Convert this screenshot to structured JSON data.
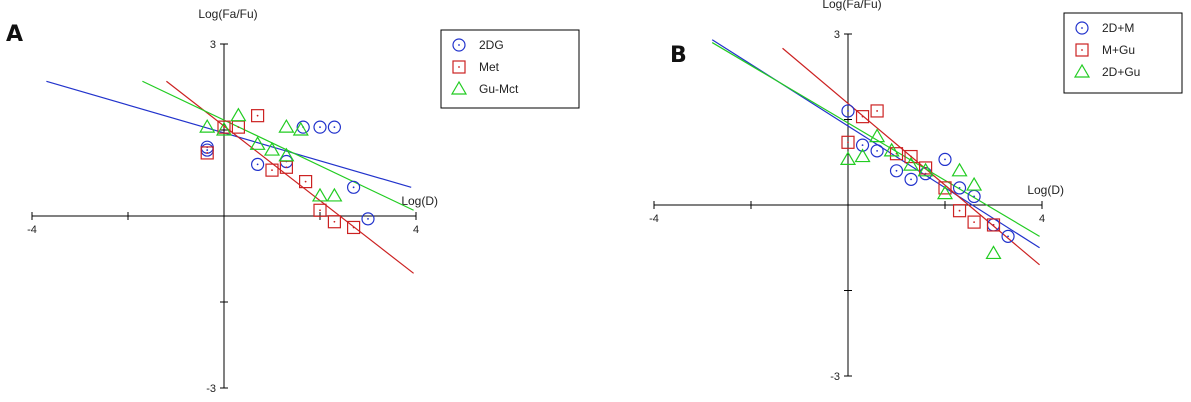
{
  "chart_data": [
    {
      "panel": "A",
      "type": "scatter",
      "xlabel": "Log(D)",
      "ylabel": "Log(Fa/Fu)",
      "xlim": [
        -4,
        4
      ],
      "ylim": [
        -3,
        3
      ],
      "x_ticks": [
        -4,
        -2,
        0,
        2,
        4
      ],
      "y_ticks": [
        -3,
        -1.5,
        0,
        1.5,
        3
      ],
      "x_tick_labels": [
        {
          "value": -4,
          "label": "-4"
        },
        {
          "value": 4,
          "label": "4"
        }
      ],
      "y_tick_labels": [
        {
          "value": 3,
          "label": "3"
        },
        {
          "value": -3,
          "label": "-3"
        }
      ],
      "legend_position": "top-right",
      "series": [
        {
          "name": "2DG",
          "color": "#2233cc",
          "marker": "circle",
          "points": [
            [
              -0.35,
              1.2
            ],
            [
              -0.35,
              1.15
            ],
            [
              0.7,
              0.9
            ],
            [
              1.3,
              0.95
            ],
            [
              1.65,
              1.55
            ],
            [
              2.0,
              1.55
            ],
            [
              2.3,
              1.55
            ],
            [
              2.7,
              0.5
            ],
            [
              3.0,
              -0.05
            ]
          ],
          "fit": {
            "x": [
              -3.7,
              3.9
            ],
            "y": [
              2.35,
              0.5
            ]
          }
        },
        {
          "name": "Met",
          "color": "#cc2222",
          "marker": "square",
          "points": [
            [
              -0.35,
              1.1
            ],
            [
              0.0,
              1.55
            ],
            [
              0.3,
              1.55
            ],
            [
              0.7,
              1.75
            ],
            [
              1.0,
              0.8
            ],
            [
              1.3,
              0.85
            ],
            [
              1.7,
              0.6
            ],
            [
              2.0,
              0.1
            ],
            [
              2.3,
              -0.1
            ],
            [
              2.7,
              -0.2
            ]
          ],
          "fit": {
            "x": [
              -1.2,
              3.95
            ],
            "y": [
              2.35,
              -1.0
            ]
          }
        },
        {
          "name": "Gu-Mct",
          "color": "#22cc22",
          "marker": "triangle",
          "points": [
            [
              -0.35,
              1.55
            ],
            [
              0.0,
              1.5
            ],
            [
              0.3,
              1.75
            ],
            [
              0.7,
              1.25
            ],
            [
              1.0,
              1.15
            ],
            [
              1.3,
              1.05
            ],
            [
              1.3,
              1.55
            ],
            [
              1.6,
              1.5
            ],
            [
              2.0,
              0.35
            ],
            [
              2.3,
              0.35
            ]
          ],
          "fit": {
            "x": [
              -1.7,
              3.95
            ],
            "y": [
              2.35,
              0.1
            ]
          }
        }
      ]
    },
    {
      "panel": "B",
      "type": "scatter",
      "xlabel": "Log(D)",
      "ylabel": "Log(Fa/Fu)",
      "xlim": [
        -4,
        4
      ],
      "ylim": [
        -3,
        3
      ],
      "x_ticks": [
        -4,
        -2,
        0,
        2,
        4
      ],
      "y_ticks": [
        -3,
        -1.5,
        0,
        1.5,
        3
      ],
      "x_tick_labels": [
        {
          "value": -4,
          "label": "-4"
        },
        {
          "value": 4,
          "label": "4"
        }
      ],
      "y_tick_labels": [
        {
          "value": 3,
          "label": "3"
        },
        {
          "value": -3,
          "label": "-3"
        }
      ],
      "legend_position": "top-right",
      "series": [
        {
          "name": "2D+M",
          "color": "#2233cc",
          "marker": "circle",
          "points": [
            [
              0.0,
              1.65
            ],
            [
              0.3,
              1.05
            ],
            [
              0.6,
              0.95
            ],
            [
              1.0,
              0.6
            ],
            [
              1.3,
              0.45
            ],
            [
              1.6,
              0.55
            ],
            [
              2.0,
              0.8
            ],
            [
              2.3,
              0.3
            ],
            [
              2.6,
              0.15
            ],
            [
              3.0,
              -0.35
            ],
            [
              3.3,
              -0.55
            ]
          ],
          "fit": {
            "x": [
              -2.8,
              3.95
            ],
            "y": [
              2.9,
              -0.75
            ]
          }
        },
        {
          "name": "M+Gu",
          "color": "#cc2222",
          "marker": "square",
          "points": [
            [
              0.0,
              1.1
            ],
            [
              0.3,
              1.55
            ],
            [
              0.6,
              1.65
            ],
            [
              1.0,
              0.9
            ],
            [
              1.3,
              0.85
            ],
            [
              1.6,
              0.65
            ],
            [
              2.0,
              0.3
            ],
            [
              2.3,
              -0.1
            ],
            [
              2.6,
              -0.3
            ],
            [
              3.0,
              -0.35
            ]
          ],
          "fit": {
            "x": [
              -1.35,
              3.95
            ],
            "y": [
              2.75,
              -1.05
            ]
          }
        },
        {
          "name": "2D+Gu",
          "color": "#22cc22",
          "marker": "triangle",
          "points": [
            [
              0.0,
              0.8
            ],
            [
              0.3,
              0.85
            ],
            [
              0.6,
              1.2
            ],
            [
              0.9,
              0.95
            ],
            [
              1.3,
              0.7
            ],
            [
              1.6,
              0.6
            ],
            [
              2.0,
              0.2
            ],
            [
              2.3,
              0.6
            ],
            [
              2.6,
              0.35
            ],
            [
              3.0,
              -0.85
            ]
          ],
          "fit": {
            "x": [
              -2.8,
              3.95
            ],
            "y": [
              2.85,
              -0.55
            ]
          }
        }
      ]
    }
  ]
}
